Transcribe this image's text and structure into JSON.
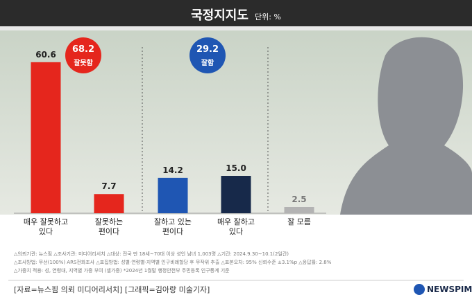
{
  "chart_data": {
    "type": "bar",
    "title": "국정지지도",
    "subtitle": "단위: %",
    "categories": [
      "매우 잘못하고\n있다",
      "잘못하는\n편이다",
      "잘하고 있는\n편이다",
      "매우 잘하고\n있다",
      "잘 모름"
    ],
    "values": [
      60.6,
      7.7,
      14.2,
      15.0,
      2.5
    ],
    "value_labels": [
      "60.6",
      "7.7",
      "14.2",
      "15.0",
      "2.5"
    ],
    "colors": [
      "#e5261d",
      "#e5261d",
      "#1f56b3",
      "#17294a",
      "#b3b3b3"
    ],
    "groups": [
      {
        "total": 68.2,
        "name": "잘못함",
        "color": "#e5261d"
      },
      {
        "total": 29.2,
        "name": "잘함",
        "color": "#1f56b3"
      }
    ],
    "notes": [
      "△의뢰기관: 뉴스핌  △조사기관: 미디어리서치  △대상: 전국 만 18세~70대 이상 성인 남녀 1,003명  △기간: 2024.9.30~10.1(2일간)",
      "△조사방법: 무선(100%) ARS전화조사  △표집방법: 성별·연령별·지역별 인구비례할당 후 무작위 추출  △표본오차: 95% 신뢰수준 ±3.1%p  △응답률: 2.8%",
      "△가중치 적용: 성, 연령대, 지역별 가중 부여 (셀가중) *2024년 1월말 행정안전부 주민등록 인구통계 기준"
    ],
    "source": "[자료=뉴스핌 의뢰 미디어리서치] [그래픽=김아랑 미술기자]",
    "logo": "NEWSPIM"
  }
}
